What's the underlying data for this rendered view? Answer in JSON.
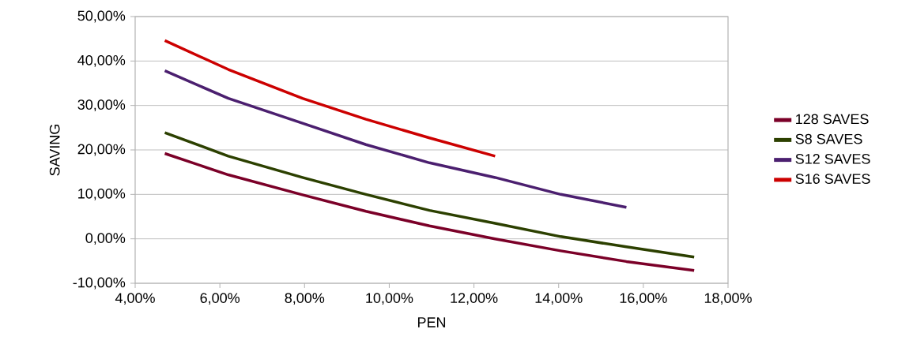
{
  "chart_data": {
    "type": "line",
    "xlabel": "PEN",
    "ylabel": "SAVING",
    "x": [
      4.7,
      6.2,
      7.95,
      9.45,
      10.95,
      12.5,
      14.05,
      15.6,
      17.2
    ],
    "series": [
      {
        "name": "128 SAVES",
        "color": "#7b0028",
        "values": [
          19.2,
          14.4,
          9.9,
          6.2,
          2.9,
          0.0,
          -2.7,
          -5.1,
          -7.1
        ]
      },
      {
        "name": "S8 SAVES",
        "color": "#2c4000",
        "values": [
          23.9,
          18.6,
          13.8,
          10.0,
          6.4,
          3.5,
          0.5,
          -1.8,
          -4.1
        ]
      },
      {
        "name": "S12 SAVES",
        "color": "#4b1f6f",
        "values": [
          37.8,
          31.6,
          26.0,
          21.2,
          17.1,
          13.8,
          10.0,
          7.1,
          null
        ]
      },
      {
        "name": "S16 SAVES",
        "color": "#cc0000",
        "values": [
          44.6,
          38.1,
          31.6,
          26.9,
          22.7,
          18.6,
          null,
          null,
          null
        ]
      }
    ],
    "xlim": [
      4,
      18
    ],
    "ylim": [
      -10,
      50
    ],
    "xticks": [
      {
        "value": 4,
        "label": "4,00%"
      },
      {
        "value": 6,
        "label": "6,00%"
      },
      {
        "value": 8,
        "label": "8,00%"
      },
      {
        "value": 10,
        "label": "10,00%"
      },
      {
        "value": 12,
        "label": "12,00%"
      },
      {
        "value": 14,
        "label": "14,00%"
      },
      {
        "value": 16,
        "label": "16,00%"
      },
      {
        "value": 18,
        "label": "18,00%"
      }
    ],
    "yticks": [
      {
        "value": -10,
        "label": "-10,00%"
      },
      {
        "value": 0,
        "label": "0,00%"
      },
      {
        "value": 10,
        "label": "10,00%"
      },
      {
        "value": 20,
        "label": "20,00%"
      },
      {
        "value": 30,
        "label": "30,00%"
      },
      {
        "value": 40,
        "label": "40,00%"
      },
      {
        "value": 50,
        "label": "50,00%"
      }
    ],
    "grid": "y",
    "legend": "right",
    "marker": "none",
    "line_style": "solid"
  }
}
